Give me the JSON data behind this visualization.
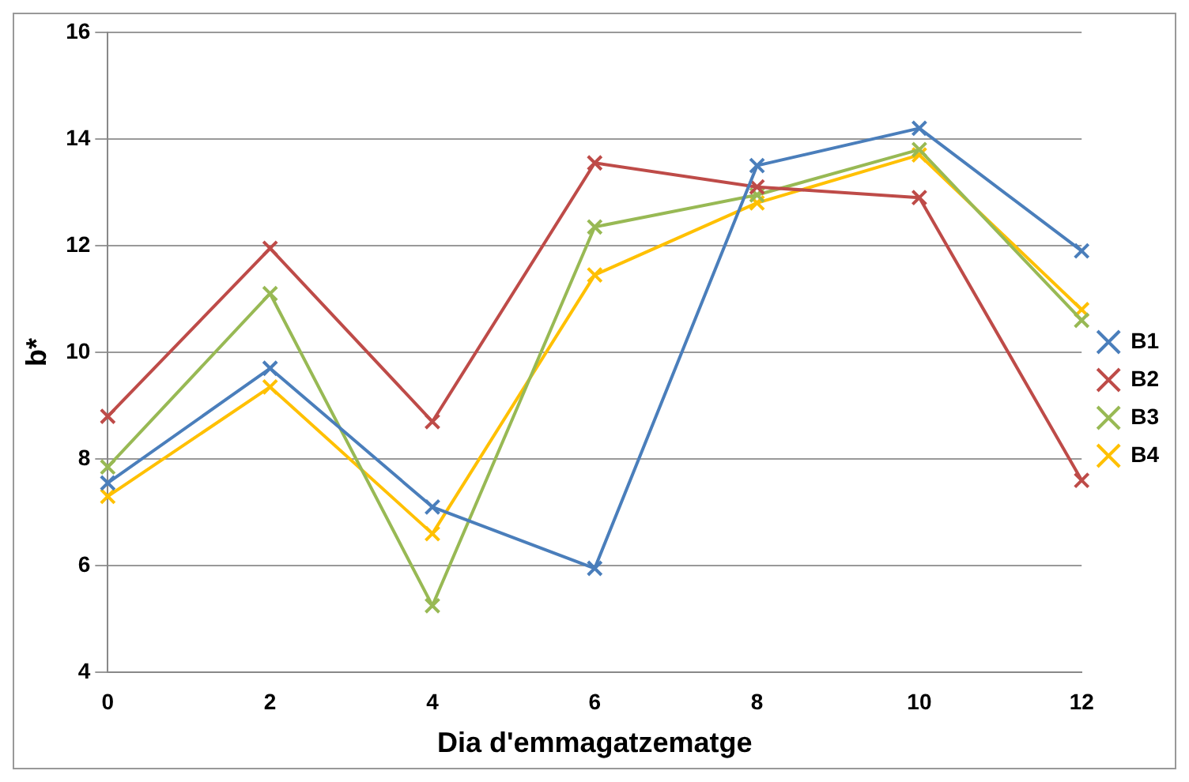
{
  "chart_data": {
    "type": "line",
    "xlabel": "Dia d'emmagatzematge",
    "ylabel": "b*",
    "x": [
      0,
      2,
      4,
      6,
      8,
      10,
      12
    ],
    "series": [
      {
        "name": "B1",
        "color": "#4a7ebb",
        "values": [
          7.55,
          9.7,
          7.1,
          5.95,
          13.5,
          14.2,
          11.9
        ]
      },
      {
        "name": "B2",
        "color": "#be4b48",
        "values": [
          8.8,
          11.95,
          8.7,
          13.55,
          13.1,
          12.9,
          7.6
        ]
      },
      {
        "name": "B3",
        "color": "#98b954",
        "values": [
          7.85,
          11.1,
          5.25,
          12.35,
          12.95,
          13.8,
          10.6
        ]
      },
      {
        "name": "B4",
        "color": "#ffc000",
        "values": [
          7.3,
          9.35,
          6.6,
          11.45,
          12.8,
          13.7,
          10.8
        ]
      }
    ],
    "xlim": [
      0,
      12
    ],
    "xticks": [
      0,
      2,
      4,
      6,
      8,
      10,
      12
    ],
    "ylim": [
      4,
      16
    ],
    "yticks": [
      4,
      6,
      8,
      10,
      12,
      14,
      16
    ],
    "grid": "y",
    "legend": "right",
    "marker": "cross",
    "line_style": "solid"
  }
}
